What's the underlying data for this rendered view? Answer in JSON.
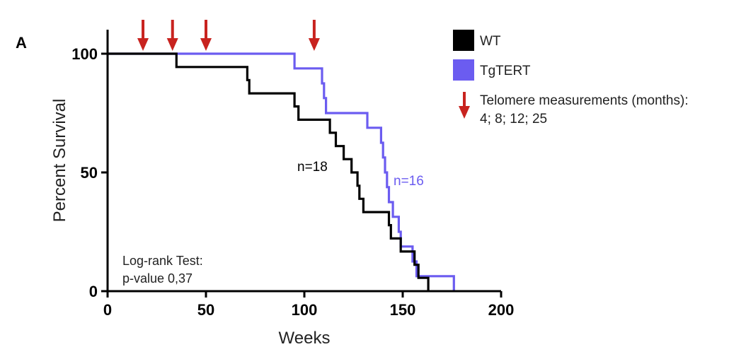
{
  "panel_label": "A",
  "colors": {
    "wt": "#000000",
    "tgtert": "#6b5cf0",
    "arrow": "#c8231f"
  },
  "chart_data": {
    "type": "line",
    "xlabel": "Weeks",
    "ylabel": "Percent Survival",
    "xlim": [
      0,
      200
    ],
    "ylim": [
      0,
      100
    ],
    "x_ticks": [
      0,
      50,
      100,
      150,
      200
    ],
    "y_ticks": [
      0,
      50,
      100
    ],
    "x_tick_labels": [
      "0",
      "50",
      "100",
      "150",
      "200"
    ],
    "y_tick_labels": [
      "0",
      "50",
      "100"
    ],
    "series": [
      {
        "name": "WT",
        "n_label": "n=18",
        "points": [
          [
            0,
            100
          ],
          [
            35,
            100
          ],
          [
            35,
            94.4
          ],
          [
            71,
            94.4
          ],
          [
            71,
            88.9
          ],
          [
            72,
            88.9
          ],
          [
            72,
            83.3
          ],
          [
            95,
            83.3
          ],
          [
            95,
            77.8
          ],
          [
            97,
            77.8
          ],
          [
            97,
            72.2
          ],
          [
            113,
            72.2
          ],
          [
            113,
            66.7
          ],
          [
            116,
            66.7
          ],
          [
            116,
            61.1
          ],
          [
            120,
            61.1
          ],
          [
            120,
            55.6
          ],
          [
            124,
            55.6
          ],
          [
            124,
            50
          ],
          [
            127,
            50
          ],
          [
            127,
            44.4
          ],
          [
            128,
            44.4
          ],
          [
            128,
            38.9
          ],
          [
            130,
            38.9
          ],
          [
            130,
            33.3
          ],
          [
            143,
            33.3
          ],
          [
            143,
            27.8
          ],
          [
            144,
            27.8
          ],
          [
            144,
            22.2
          ],
          [
            149,
            22.2
          ],
          [
            149,
            16.7
          ],
          [
            156,
            16.7
          ],
          [
            156,
            11.1
          ],
          [
            158,
            11.1
          ],
          [
            158,
            5.6
          ],
          [
            163,
            5.6
          ],
          [
            163,
            0
          ]
        ]
      },
      {
        "name": "TgTERT",
        "n_label": "n=16",
        "points": [
          [
            0,
            100
          ],
          [
            95,
            100
          ],
          [
            95,
            93.8
          ],
          [
            109,
            93.8
          ],
          [
            109,
            87.5
          ],
          [
            110,
            87.5
          ],
          [
            110,
            81.3
          ],
          [
            111,
            81.3
          ],
          [
            111,
            75
          ],
          [
            132,
            75
          ],
          [
            132,
            68.8
          ],
          [
            139,
            68.8
          ],
          [
            139,
            62.5
          ],
          [
            140,
            62.5
          ],
          [
            140,
            56.3
          ],
          [
            141,
            56.3
          ],
          [
            141,
            50
          ],
          [
            142,
            50
          ],
          [
            142,
            43.8
          ],
          [
            143,
            43.8
          ],
          [
            143,
            37.5
          ],
          [
            145,
            37.5
          ],
          [
            145,
            31.3
          ],
          [
            148,
            31.3
          ],
          [
            148,
            25
          ],
          [
            149,
            25
          ],
          [
            149,
            18.8
          ],
          [
            155,
            18.8
          ],
          [
            155,
            12.5
          ],
          [
            157,
            12.5
          ],
          [
            157,
            6.3
          ],
          [
            176,
            6.3
          ],
          [
            176,
            0
          ]
        ]
      }
    ],
    "arrows_x": [
      18,
      33,
      50,
      105
    ],
    "legend": {
      "entries": [
        "WT",
        "TgTERT"
      ],
      "arrow_label_line1": "Telomere measurements (months):",
      "arrow_label_line2": "4; 8; 12; 25"
    },
    "annotation_line1": "Log-rank Test:",
    "annotation_line2": "p-value 0,37"
  }
}
